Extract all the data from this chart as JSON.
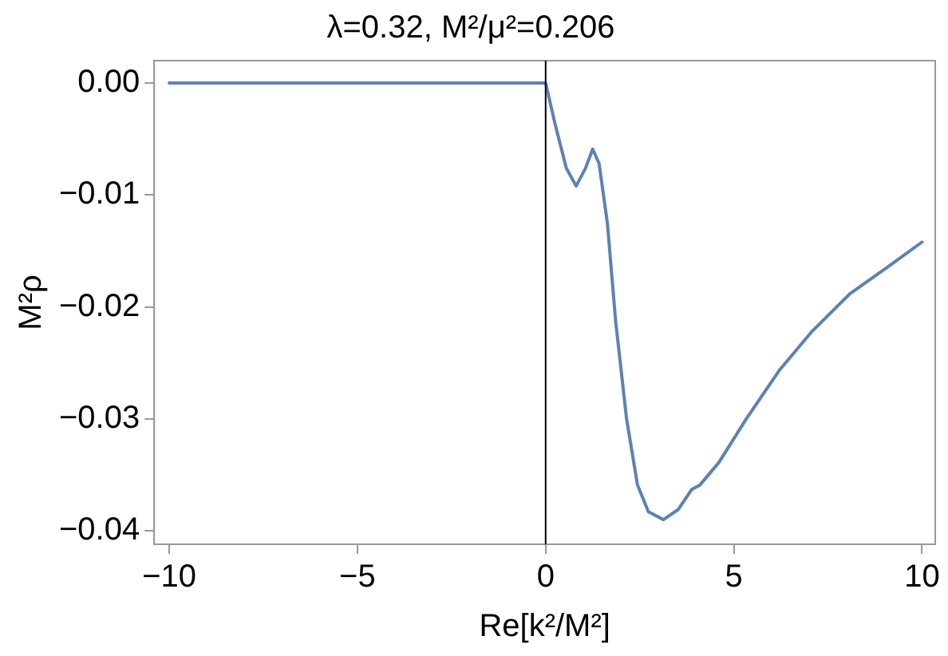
{
  "chart_data": {
    "type": "line",
    "title": "λ=0.32, M²/μ²=0.206",
    "xlabel": "Re[k²/M²]",
    "ylabel": "M²ρ",
    "x": [
      -10,
      0,
      0.26,
      0.55,
      0.81,
      1.06,
      1.25,
      1.42,
      1.64,
      1.86,
      2.15,
      2.44,
      2.73,
      3.13,
      3.52,
      3.88,
      4.1,
      4.6,
      5.33,
      6.2,
      7.07,
      8.09,
      9.1,
      10
    ],
    "series": [
      {
        "color": "#5e81b5",
        "values": [
          0,
          0,
          -0.0038,
          -0.0076,
          -0.0092,
          -0.0076,
          -0.0059,
          -0.0072,
          -0.0125,
          -0.0213,
          -0.03,
          -0.0359,
          -0.0383,
          -0.039,
          -0.0381,
          -0.0363,
          -0.0359,
          -0.0339,
          -0.03,
          -0.0257,
          -0.0222,
          -0.0188,
          -0.0164,
          -0.0142
        ]
      }
    ],
    "xlim": [
      -10.4,
      10.35
    ],
    "ylim": [
      -0.0412,
      0.002
    ],
    "xticks": [
      {
        "value": -10,
        "label": "−10"
      },
      {
        "value": -5,
        "label": "−5"
      },
      0,
      5,
      10
    ],
    "yticks": [
      {
        "value": 0,
        "label": "0.00"
      },
      {
        "value": -0.01,
        "label": "−0.01"
      },
      {
        "value": -0.02,
        "label": "−0.02"
      },
      {
        "value": -0.03,
        "label": "−0.03"
      },
      {
        "value": -0.04,
        "label": "−0.04"
      }
    ],
    "ref_lines": [
      {
        "axis": "x",
        "value": 0,
        "color": "#000000"
      }
    ],
    "grid": false,
    "legend": false,
    "marker": "none",
    "line_style": "solid"
  }
}
